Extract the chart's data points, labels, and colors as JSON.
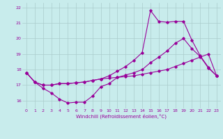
{
  "xlabel": "Windchill (Refroidissement éolien,°C)",
  "x_ticks": [
    0,
    1,
    2,
    3,
    4,
    5,
    6,
    7,
    8,
    9,
    10,
    11,
    12,
    13,
    14,
    15,
    16,
    17,
    18,
    19,
    20,
    21,
    22,
    23
  ],
  "ylim": [
    15.5,
    22.3
  ],
  "xlim": [
    -0.5,
    23.5
  ],
  "yticks": [
    16,
    17,
    18,
    19,
    20,
    21,
    22
  ],
  "background_color": "#c8ecec",
  "line_color": "#990099",
  "grid_color": "#aacccc",
  "line1_y": [
    17.8,
    17.2,
    16.8,
    16.5,
    16.1,
    15.85,
    15.9,
    15.9,
    16.3,
    16.9,
    17.1,
    17.5,
    17.65,
    17.8,
    18.0,
    18.45,
    18.8,
    19.2,
    19.7,
    20.0,
    19.35,
    18.85,
    18.1,
    17.6
  ],
  "line2_y": [
    17.8,
    17.2,
    17.0,
    17.0,
    17.1,
    17.1,
    17.15,
    17.2,
    17.3,
    17.4,
    17.45,
    17.5,
    17.55,
    17.6,
    17.7,
    17.8,
    17.9,
    18.0,
    18.2,
    18.4,
    18.6,
    18.8,
    19.0,
    17.6
  ],
  "line3_y": [
    17.8,
    17.2,
    17.0,
    17.0,
    17.1,
    17.1,
    17.15,
    17.2,
    17.3,
    17.4,
    17.6,
    17.9,
    18.2,
    18.6,
    19.1,
    21.8,
    21.1,
    21.05,
    21.1,
    21.1,
    19.9,
    18.9,
    18.15,
    17.6
  ]
}
